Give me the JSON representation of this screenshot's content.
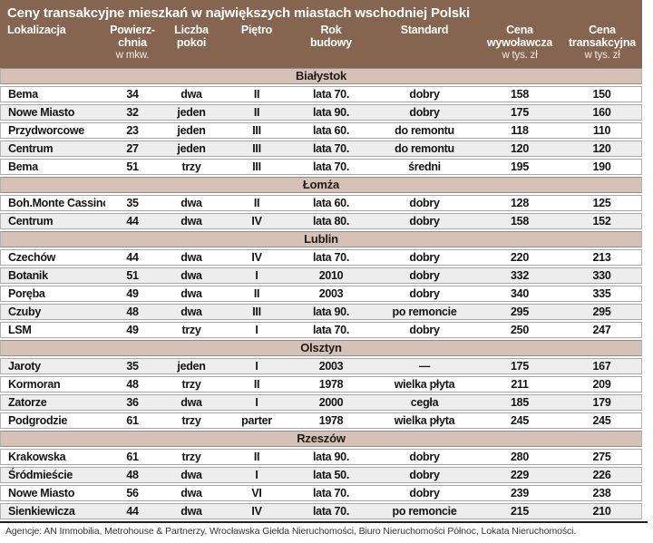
{
  "title": "Ceny transakcyjne mieszkań w największych miastach wschodniej Polski",
  "colors": {
    "header_bg": "#85654f",
    "section_bg": "#d5c1b5",
    "row_alt_bg": "#ededed",
    "header_text": "#ffffff",
    "body_text": "#141414"
  },
  "columns": [
    {
      "id": "lokalizacja",
      "lines": [
        "Lokalizacja"
      ],
      "sub": ""
    },
    {
      "id": "powierzchnia",
      "lines": [
        "Powierz-",
        "chnia"
      ],
      "sub": "w mkw."
    },
    {
      "id": "liczba-pokoi",
      "lines": [
        "Liczba",
        "pokoi"
      ],
      "sub": ""
    },
    {
      "id": "pietro",
      "lines": [
        "Piętro"
      ],
      "sub": ""
    },
    {
      "id": "rok-budowy",
      "lines": [
        "Rok",
        "budowy"
      ],
      "sub": ""
    },
    {
      "id": "standard",
      "lines": [
        "Standard"
      ],
      "sub": ""
    },
    {
      "id": "cena-wywolawcza",
      "lines": [
        "Cena",
        "wywoławcza"
      ],
      "sub": "w tys. zł"
    },
    {
      "id": "cena-transakcyjna",
      "lines": [
        "Cena",
        "transakcyjna"
      ],
      "sub": "w tys. zł"
    }
  ],
  "sections": [
    {
      "name": "Białystok",
      "first_row_shaded": false,
      "rows": [
        [
          "Bema",
          "34",
          "dwa",
          "II",
          "lata 70.",
          "dobry",
          "158",
          "150"
        ],
        [
          "Nowe Miasto",
          "32",
          "jeden",
          "II",
          "lata 90.",
          "dobry",
          "175",
          "160"
        ],
        [
          "Przydworcowe",
          "23",
          "jeden",
          "III",
          "lata 60.",
          "do remontu",
          "118",
          "110"
        ],
        [
          "Centrum",
          "27",
          "jeden",
          "III",
          "lata 70.",
          "do remontu",
          "120",
          "120"
        ],
        [
          "Bema",
          "51",
          "trzy",
          "III",
          "lata 70.",
          "średni",
          "195",
          "190"
        ]
      ]
    },
    {
      "name": "Łomża",
      "first_row_shaded": false,
      "rows": [
        [
          "Boh.Monte Cassino",
          "35",
          "dwa",
          "II",
          "lata 60.",
          "dobry",
          "128",
          "125"
        ],
        [
          "Centrum",
          "44",
          "dwa",
          "IV",
          "lata 80.",
          "dobry",
          "158",
          "152"
        ]
      ]
    },
    {
      "name": "Lublin",
      "first_row_shaded": false,
      "rows": [
        [
          "Czechów",
          "44",
          "dwa",
          "IV",
          "lata 70.",
          "dobry",
          "220",
          "213"
        ],
        [
          "Botanik",
          "51",
          "dwa",
          "I",
          "2010",
          "dobry",
          "332",
          "330"
        ],
        [
          "Poręba",
          "49",
          "dwa",
          "II",
          "2003",
          "dobry",
          "340",
          "335"
        ],
        [
          "Czuby",
          "48",
          "dwa",
          "III",
          "lata 90.",
          "po remoncie",
          "295",
          "295"
        ],
        [
          "LSM",
          "49",
          "trzy",
          "I",
          "lata 70.",
          "dobry",
          "250",
          "247"
        ]
      ]
    },
    {
      "name": "Olsztyn",
      "first_row_shaded": true,
      "rows": [
        [
          "Jaroty",
          "35",
          "jeden",
          "I",
          "2003",
          "—",
          "175",
          "167"
        ],
        [
          "Kormoran",
          "48",
          "trzy",
          "II",
          "1978",
          "wielka płyta",
          "211",
          "209"
        ],
        [
          "Zatorze",
          "36",
          "dwa",
          "I",
          "2000",
          "cegła",
          "185",
          "179"
        ],
        [
          "Podgrodzie",
          "61",
          "trzy",
          "parter",
          "1978",
          "wielka płyta",
          "245",
          "245"
        ]
      ]
    },
    {
      "name": "Rzeszów",
      "first_row_shaded": false,
      "rows": [
        [
          "Krakowska",
          "61",
          "trzy",
          "II",
          "lata 90.",
          "dobry",
          "280",
          "275"
        ],
        [
          "Śródmieście",
          "48",
          "dwa",
          "I",
          "lata 50.",
          "dobry",
          "229",
          "226"
        ],
        [
          "Nowe Miasto",
          "56",
          "dwa",
          "VI",
          "lata 70.",
          "dobry",
          "239",
          "238"
        ],
        [
          "Sienkiewicza",
          "44",
          "dwa",
          "IV",
          "lata 70.",
          "po remoncie",
          "215",
          "210"
        ]
      ]
    }
  ],
  "footer": "Agencje: AN Immobilia, Metrohouse & Partnerzy, Wrocławska Giełda Nieruchomości, Biuro Nieruchomości Północ, Lokata Nieruchomości."
}
